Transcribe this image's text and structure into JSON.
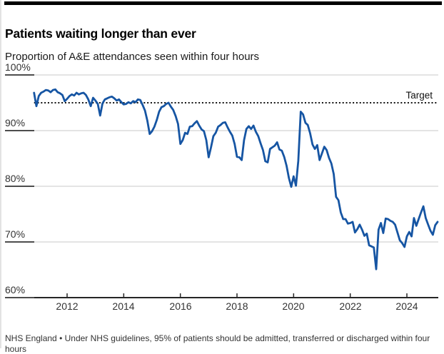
{
  "header": {
    "title": "Patients waiting longer than ever",
    "subtitle": "Proportion of A&E attendances seen within four hours"
  },
  "chart_data": {
    "type": "line",
    "title": "Patients waiting longer than ever",
    "subtitle": "Proportion of A&E attendances seen within four hours",
    "unit": "%",
    "frequency": "monthly",
    "start_month": "2010-11",
    "end_month": "2025-02",
    "ylim": [
      60,
      100
    ],
    "grid": true,
    "y_ticks": [
      100,
      90,
      80,
      70,
      60
    ],
    "y_tick_labels": [
      "100%",
      "90%",
      "80%",
      "70%",
      "60%"
    ],
    "x_ticks": [
      2012,
      2014,
      2016,
      2018,
      2020,
      2022,
      2024
    ],
    "x_tick_labels": [
      "2012",
      "2014",
      "2016",
      "2018",
      "2020",
      "2022",
      "2024"
    ],
    "target": {
      "label": "Target",
      "value": 95
    },
    "series": [
      {
        "name": "A&E attendances seen within four hours (%)",
        "values": [
          96.8,
          94.4,
          96.2,
          96.8,
          97.0,
          97.3,
          97.2,
          96.9,
          97.3,
          97.4,
          96.9,
          96.7,
          96.4,
          95.3,
          95.7,
          96.2,
          96.5,
          96.3,
          96.8,
          96.5,
          96.7,
          96.8,
          96.4,
          95.6,
          94.4,
          95.9,
          95.4,
          94.8,
          92.7,
          94.9,
          95.6,
          95.8,
          96.0,
          96.1,
          95.8,
          95.4,
          95.6,
          95.1,
          94.7,
          94.8,
          95.1,
          94.9,
          95.3,
          95.1,
          95.6,
          95.5,
          94.6,
          93.6,
          91.8,
          89.4,
          89.9,
          90.7,
          91.9,
          93.4,
          94.2,
          94.4,
          94.8,
          95.0,
          94.3,
          93.7,
          92.6,
          91.2,
          87.6,
          88.3,
          89.6,
          89.4,
          90.7,
          90.8,
          91.3,
          91.7,
          90.9,
          90.2,
          89.9,
          88.3,
          85.2,
          87.0,
          89.0,
          89.6,
          90.7,
          91.0,
          91.4,
          91.5,
          90.6,
          89.8,
          89.1,
          87.6,
          85.3,
          85.2,
          84.7,
          88.3,
          90.3,
          90.8,
          90.3,
          90.9,
          89.8,
          89.0,
          87.7,
          86.5,
          84.5,
          84.3,
          86.7,
          87.0,
          87.3,
          87.9,
          86.6,
          86.4,
          85.3,
          83.7,
          81.5,
          79.9,
          81.8,
          80.1,
          84.6,
          93.4,
          92.9,
          91.4,
          91.0,
          89.5,
          87.5,
          86.7,
          87.4,
          84.7,
          85.9,
          87.1,
          86.5,
          85.1,
          84.1,
          82.2,
          78.1,
          77.5,
          75.3,
          74.1,
          74.1,
          73.3,
          73.4,
          73.6,
          71.7,
          72.3,
          73.1,
          72.2,
          71.1,
          71.5,
          69.4,
          69.2,
          69.0,
          65.1,
          72.2,
          73.4,
          71.6,
          74.2,
          74.1,
          73.8,
          73.6,
          73.1,
          71.7,
          70.3,
          69.8,
          69.1,
          71.0,
          71.8,
          71.0,
          74.3,
          72.9,
          74.1,
          75.3,
          76.4,
          74.3,
          73.1,
          72.0,
          71.3,
          73.0,
          73.6
        ]
      }
    ]
  },
  "colors": {
    "line": "#1655a3",
    "target_line": "#111111",
    "gridline": "#c9c9c9",
    "axis": "#262626",
    "tick": "#4d4d4d",
    "top_bar": "#000000"
  },
  "footer": {
    "source": "NHS England",
    "separator": "•",
    "note": "Under NHS guidelines, 95% of patients should be admitted, transferred or discharged within four hours"
  }
}
